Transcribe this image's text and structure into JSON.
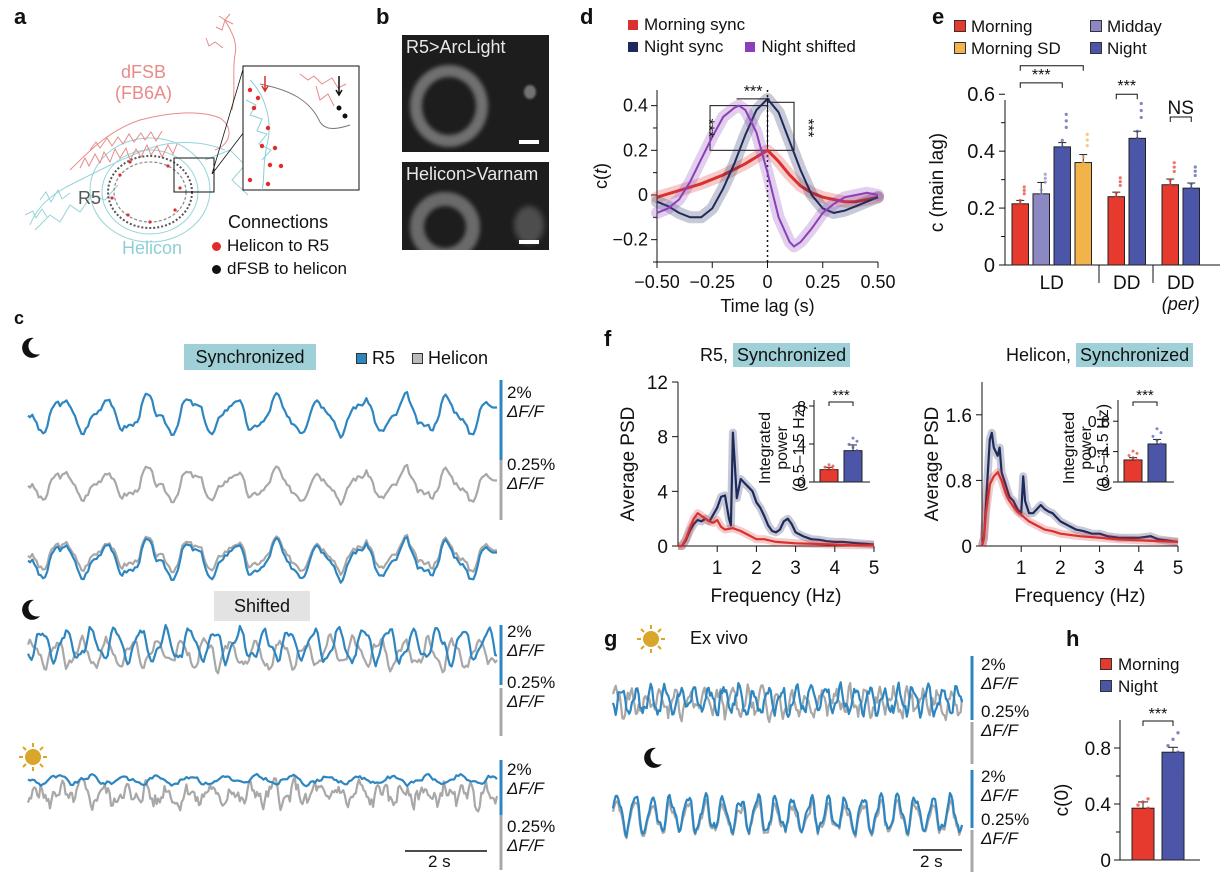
{
  "figure": {
    "panel_labels": {
      "a": "a",
      "b": "b",
      "c": "c",
      "d": "d",
      "e": "e",
      "f": "f",
      "g": "g",
      "h": "h"
    },
    "colors": {
      "r5_blue": "#2e86c1",
      "helicon_gray": "#a8a8a8",
      "morning_red": "#e63a2e",
      "night_navy": "#1f2a5c",
      "night_bar": "#4b56a8",
      "midday": "#8c88c4",
      "morning_sd": "#f2b44a",
      "night_shifted": "#8b3fb8",
      "sync_highlight": "#9fd0d8",
      "shifted_highlight": "#e3e3e3",
      "sun": "#d9a52a",
      "dfsb_pink": "#e88a8a",
      "helicon_cyan": "#8ccfd6"
    }
  },
  "panel_a": {
    "dfsb_label_1": "dFSB",
    "dfsb_label_2": "(FB6A)",
    "r5_label": "R5",
    "helicon_label": "Helicon",
    "legend_title": "Connections",
    "legend_items": [
      {
        "label": "Helicon to R5",
        "color": "#e32a2a"
      },
      {
        "label": "dFSB to helicon",
        "color": "#111111"
      }
    ]
  },
  "panel_b": {
    "images": [
      {
        "label": "R5>ArcLight"
      },
      {
        "label": "Helicon>Varnam"
      }
    ]
  },
  "panel_c": {
    "sync_tag": "Synchronized",
    "shifted_tag": "Shifted",
    "legend": [
      {
        "label": "R5",
        "color": "#2e86c1"
      },
      {
        "label": "Helicon",
        "color": "#a8a8a8"
      }
    ],
    "scale_r5_1": "2%",
    "scale_r5_2": "ΔF/F",
    "scale_hel_1": "0.25%",
    "scale_hel_2": "ΔF/F",
    "time_scale": "2 s",
    "icons": [
      "moon-icon",
      "moon-icon",
      "sun-icon"
    ]
  },
  "panel_g": {
    "title": "Ex vivo",
    "scale_r5_1": "2%",
    "scale_r5_2": "ΔF/F",
    "scale_hel_1": "0.25%",
    "scale_hel_2": "ΔF/F",
    "time_scale": "2 s"
  },
  "chart_data": [
    {
      "id": "d",
      "type": "line",
      "title": "",
      "xlabel": "Time lag (s)",
      "ylabel": "c(t)",
      "xlim": [
        -0.5,
        0.5
      ],
      "ylim": [
        -0.3,
        0.47
      ],
      "xticks": [
        -0.5,
        -0.25,
        0,
        0.25,
        0.5
      ],
      "xtick_labels": [
        "−0.50",
        "−0.25",
        "0",
        "0.25",
        "0.50"
      ],
      "yticks": [
        -0.2,
        0,
        0.2,
        0.4
      ],
      "ytick_labels": [
        "−0.2",
        "0",
        "0.2",
        "0.4"
      ],
      "legend": "top",
      "annotations": [
        "***",
        "***",
        "***"
      ],
      "series": [
        {
          "name": "Morning sync",
          "color": "#d8312e",
          "x": [
            -0.5,
            -0.4,
            -0.3,
            -0.2,
            -0.1,
            -0.05,
            0,
            0.05,
            0.1,
            0.15,
            0.2,
            0.25,
            0.3,
            0.35,
            0.4,
            0.45,
            0.5
          ],
          "y": [
            -0.01,
            0.02,
            0.05,
            0.09,
            0.14,
            0.17,
            0.2,
            0.15,
            0.09,
            0.04,
            0.01,
            -0.01,
            -0.02,
            -0.03,
            -0.03,
            -0.02,
            -0.01
          ]
        },
        {
          "name": "Night sync",
          "color": "#1f2a5c",
          "x": [
            -0.5,
            -0.45,
            -0.4,
            -0.35,
            -0.3,
            -0.25,
            -0.2,
            -0.15,
            -0.1,
            -0.05,
            0,
            0.05,
            0.1,
            0.15,
            0.2,
            0.25,
            0.3,
            0.35,
            0.4,
            0.45,
            0.5
          ],
          "y": [
            -0.03,
            -0.05,
            -0.08,
            -0.1,
            -0.1,
            -0.06,
            0.03,
            0.14,
            0.27,
            0.38,
            0.43,
            0.37,
            0.24,
            0.11,
            0.0,
            -0.06,
            -0.08,
            -0.07,
            -0.05,
            -0.03,
            -0.01
          ]
        },
        {
          "name": "Night shifted",
          "color": "#8b3fb8",
          "x": [
            -0.5,
            -0.45,
            -0.4,
            -0.35,
            -0.3,
            -0.25,
            -0.2,
            -0.15,
            -0.13,
            -0.1,
            -0.05,
            0,
            0.05,
            0.1,
            0.12,
            0.15,
            0.2,
            0.25,
            0.3,
            0.35,
            0.4,
            0.45,
            0.5
          ],
          "y": [
            -0.08,
            -0.06,
            -0.02,
            0.06,
            0.16,
            0.26,
            0.35,
            0.39,
            0.4,
            0.38,
            0.28,
            0.1,
            -0.1,
            -0.21,
            -0.23,
            -0.21,
            -0.15,
            -0.08,
            -0.04,
            -0.01,
            0.0,
            0.01,
            0.0
          ]
        }
      ]
    },
    {
      "id": "e",
      "type": "bar",
      "ylabel": "c (main lag)",
      "ylim": [
        0,
        0.65
      ],
      "yticks": [
        0,
        0.2,
        0.4,
        0.6
      ],
      "ytick_labels": [
        "0",
        "0.2",
        "0.4",
        "0.6"
      ],
      "legend": [
        {
          "name": "Morning",
          "color": "#e63a2e"
        },
        {
          "name": "Midday",
          "color": "#8c88c4"
        },
        {
          "name": "Morning SD",
          "color": "#f2b44a"
        },
        {
          "name": "Night",
          "color": "#4b56a8"
        }
      ],
      "groups": [
        {
          "label": "LD",
          "italic_sub": "",
          "bars": [
            {
              "name": "Morning",
              "value": 0.215,
              "sem": 0.012,
              "color": "#e63a2e"
            },
            {
              "name": "Midday",
              "value": 0.25,
              "sem": 0.04,
              "color": "#8c88c4"
            },
            {
              "name": "Night",
              "value": 0.415,
              "sem": 0.015,
              "color": "#4b56a8"
            },
            {
              "name": "Morning SD",
              "value": 0.36,
              "sem": 0.028,
              "color": "#f2b44a"
            }
          ]
        },
        {
          "label": "DD",
          "italic_sub": "",
          "bars": [
            {
              "name": "Morning",
              "value": 0.24,
              "sem": 0.016,
              "color": "#e63a2e"
            },
            {
              "name": "Night",
              "value": 0.445,
              "sem": 0.025,
              "color": "#4b56a8"
            }
          ]
        },
        {
          "label": "DD",
          "italic_sub": "per",
          "bars": [
            {
              "name": "Morning",
              "value": 0.282,
              "sem": 0.02,
              "color": "#e63a2e"
            },
            {
              "name": "Night",
              "value": 0.27,
              "sem": 0.018,
              "color": "#4b56a8"
            }
          ]
        }
      ],
      "significance": [
        {
          "label": "**",
          "from": "LD.Morning",
          "to": "LD.Morning SD"
        },
        {
          "label": "***",
          "from": "LD.Morning",
          "to": "LD.Night"
        },
        {
          "label": "***",
          "from": "DD.Morning",
          "to": "DD.Night"
        },
        {
          "label": "NS",
          "from": "DD(per).Morning",
          "to": "DD(per).Night"
        }
      ]
    },
    {
      "id": "f_r5",
      "type": "line",
      "title_prefix": "R5,",
      "title_tag": "Synchronized",
      "xlabel": "Frequency (Hz)",
      "ylabel": "Average PSD",
      "xlim": [
        0,
        5
      ],
      "ylim": [
        0,
        12
      ],
      "xticks": [
        1,
        2,
        3,
        4,
        5
      ],
      "yticks": [
        0,
        4,
        8,
        12
      ],
      "series": [
        {
          "name": "Night",
          "color": "#1f2a5c",
          "x": [
            0,
            0.1,
            0.2,
            0.3,
            0.4,
            0.5,
            0.6,
            0.7,
            0.8,
            0.9,
            1.0,
            1.1,
            1.2,
            1.3,
            1.35,
            1.4,
            1.45,
            1.5,
            1.6,
            1.7,
            1.8,
            1.9,
            2.0,
            2.1,
            2.2,
            2.3,
            2.4,
            2.5,
            2.6,
            2.7,
            2.8,
            2.9,
            3.0,
            3.2,
            3.4,
            3.6,
            3.8,
            4.0,
            4.2,
            4.4,
            4.6,
            4.8,
            5.0
          ],
          "y": [
            0,
            0,
            0.4,
            1.1,
            1.6,
            1.9,
            1.8,
            2.0,
            1.8,
            2.3,
            2.8,
            3.6,
            3.7,
            2.0,
            1.5,
            8.3,
            6.0,
            3.5,
            4.9,
            4.6,
            4.3,
            4.0,
            3.2,
            2.8,
            2.2,
            1.5,
            1.1,
            1.0,
            1.2,
            1.8,
            2.0,
            1.6,
            1.0,
            0.7,
            0.5,
            0.45,
            0.35,
            0.3,
            0.3,
            0.25,
            0.2,
            0.15,
            0.1
          ]
        },
        {
          "name": "Morning",
          "color": "#d8312e",
          "x": [
            0,
            0.1,
            0.2,
            0.3,
            0.4,
            0.5,
            0.6,
            0.7,
            0.8,
            0.9,
            1.0,
            1.1,
            1.2,
            1.4,
            1.6,
            1.8,
            2.0,
            2.2,
            2.5,
            3.0,
            3.5,
            4.0,
            4.5,
            5.0
          ],
          "y": [
            0,
            0,
            0.5,
            1.3,
            2.0,
            2.4,
            2.2,
            2.0,
            1.8,
            1.7,
            1.9,
            1.4,
            1.2,
            1.3,
            1.1,
            0.8,
            0.5,
            0.5,
            0.3,
            0.2,
            0.15,
            0.1,
            0.05,
            0.05
          ]
        }
      ],
      "inset": {
        "ylabel_lines": [
          "Integrated",
          "power",
          "(0.5–1.5 Hz)"
        ],
        "ylim": [
          0,
          8
        ],
        "yticks": [
          0,
          4,
          8
        ],
        "bars": [
          {
            "name": "Morning",
            "value": 1.3,
            "sem": 0.25,
            "color": "#e63a2e"
          },
          {
            "name": "Night",
            "value": 3.3,
            "sem": 0.6,
            "color": "#4b56a8"
          }
        ],
        "significance": "***"
      }
    },
    {
      "id": "f_helicon",
      "type": "line",
      "title_prefix": "Helicon,",
      "title_tag": "Synchronized",
      "xlabel": "Frequency (Hz)",
      "ylabel": "Average PSD",
      "xlim": [
        0,
        5
      ],
      "ylim": [
        0,
        2.0
      ],
      "xticks": [
        1,
        2,
        3,
        4,
        5
      ],
      "yticks": [
        0,
        0.8,
        1.6
      ],
      "series": [
        {
          "name": "Night",
          "color": "#1f2a5c",
          "x": [
            0,
            0.05,
            0.1,
            0.2,
            0.25,
            0.3,
            0.4,
            0.45,
            0.5,
            0.6,
            0.7,
            0.8,
            0.9,
            1.0,
            1.05,
            1.1,
            1.2,
            1.3,
            1.4,
            1.5,
            1.6,
            1.7,
            1.8,
            2.0,
            2.2,
            2.4,
            2.6,
            2.8,
            3.0,
            3.2,
            3.5,
            4.0,
            4.3,
            4.5,
            5.0
          ],
          "y": [
            0,
            0.1,
            0.5,
            1.3,
            1.38,
            1.2,
            1.1,
            1.2,
            0.9,
            0.75,
            0.6,
            0.55,
            0.45,
            0.4,
            0.85,
            0.55,
            0.4,
            0.4,
            0.45,
            0.5,
            0.45,
            0.42,
            0.4,
            0.3,
            0.25,
            0.2,
            0.18,
            0.15,
            0.15,
            0.12,
            0.1,
            0.1,
            0.12,
            0.08,
            0.05
          ]
        },
        {
          "name": "Morning",
          "color": "#d8312e",
          "x": [
            0,
            0.05,
            0.1,
            0.2,
            0.3,
            0.4,
            0.5,
            0.6,
            0.7,
            0.8,
            0.9,
            1.0,
            1.2,
            1.4,
            1.6,
            1.8,
            2.0,
            2.5,
            3.0,
            3.5,
            4.0,
            4.5,
            5.0
          ],
          "y": [
            0,
            0.1,
            0.4,
            0.75,
            0.85,
            0.9,
            0.8,
            0.65,
            0.55,
            0.48,
            0.42,
            0.38,
            0.3,
            0.25,
            0.2,
            0.18,
            0.15,
            0.12,
            0.1,
            0.08,
            0.07,
            0.06,
            0.05
          ]
        }
      ],
      "inset": {
        "ylabel_lines": [
          "Integrated",
          "power",
          "(0.5–1.5 Hz)"
        ],
        "ylim": [
          0,
          1.0
        ],
        "yticks": [
          0,
          0.4,
          0.8
        ],
        "bars": [
          {
            "name": "Morning",
            "value": 0.29,
            "sem": 0.03,
            "color": "#e63a2e"
          },
          {
            "name": "Night",
            "value": 0.5,
            "sem": 0.06,
            "color": "#4b56a8"
          }
        ],
        "significance": "***"
      }
    },
    {
      "id": "h",
      "type": "bar",
      "ylabel": "c(0)",
      "ylim": [
        0,
        1.0
      ],
      "yticks": [
        0,
        0.4,
        0.8
      ],
      "legend": [
        {
          "name": "Morning",
          "color": "#e63a2e"
        },
        {
          "name": "Night",
          "color": "#4b56a8"
        }
      ],
      "bars": [
        {
          "name": "Morning",
          "value": 0.37,
          "sem": 0.045,
          "color": "#e63a2e"
        },
        {
          "name": "Night",
          "value": 0.77,
          "sem": 0.035,
          "color": "#4b56a8"
        }
      ],
      "significance": "***"
    }
  ]
}
